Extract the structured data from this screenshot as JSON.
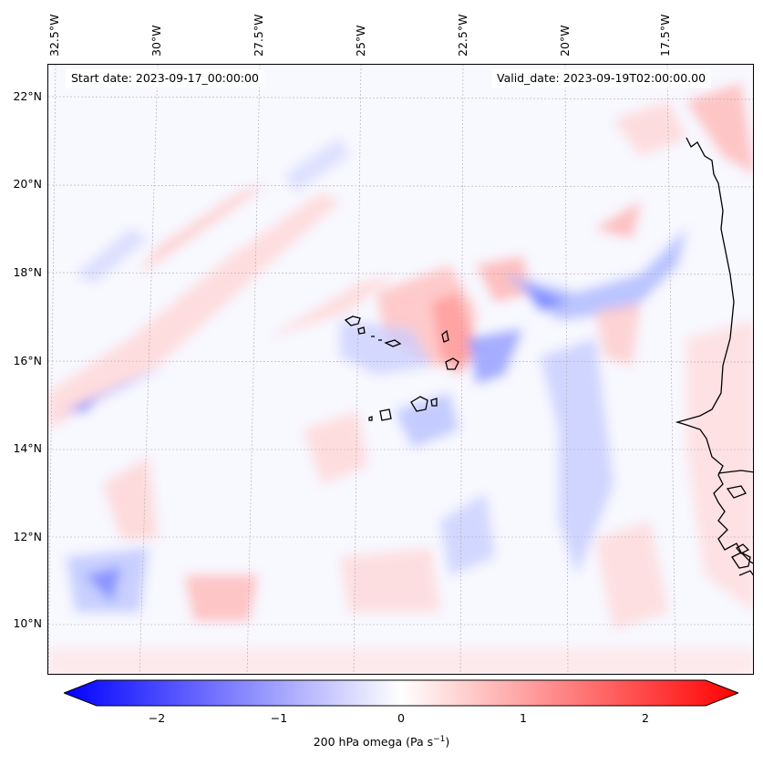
{
  "map": {
    "start_date": "Start date: 2023-09-17_00:00:00",
    "valid_date": "Valid_date: 2023-09-19T02:00:00.00",
    "lon_labels": [
      "32.5°W",
      "30°W",
      "27.5°W",
      "25°W",
      "22.5°W",
      "20°W",
      "17.5°W"
    ],
    "lat_labels": [
      "22°N",
      "20°N",
      "18°N",
      "16°N",
      "14°N",
      "12°N",
      "10°N"
    ],
    "colorbar": {
      "ticks": [
        "−2",
        "−1",
        "0",
        "1",
        "2"
      ],
      "label": "200 hPa omega (Pa s",
      "label_sup": "−1",
      "label_end": ")",
      "vmin": -2.5,
      "vmax": 2.5,
      "cmap": "bwr",
      "colors": {
        "negative": "#0000ff",
        "zero": "#ffffff",
        "positive": "#ff0000"
      }
    },
    "colors": {
      "coastline": "#000000",
      "grid": "#aaaaaa"
    }
  }
}
